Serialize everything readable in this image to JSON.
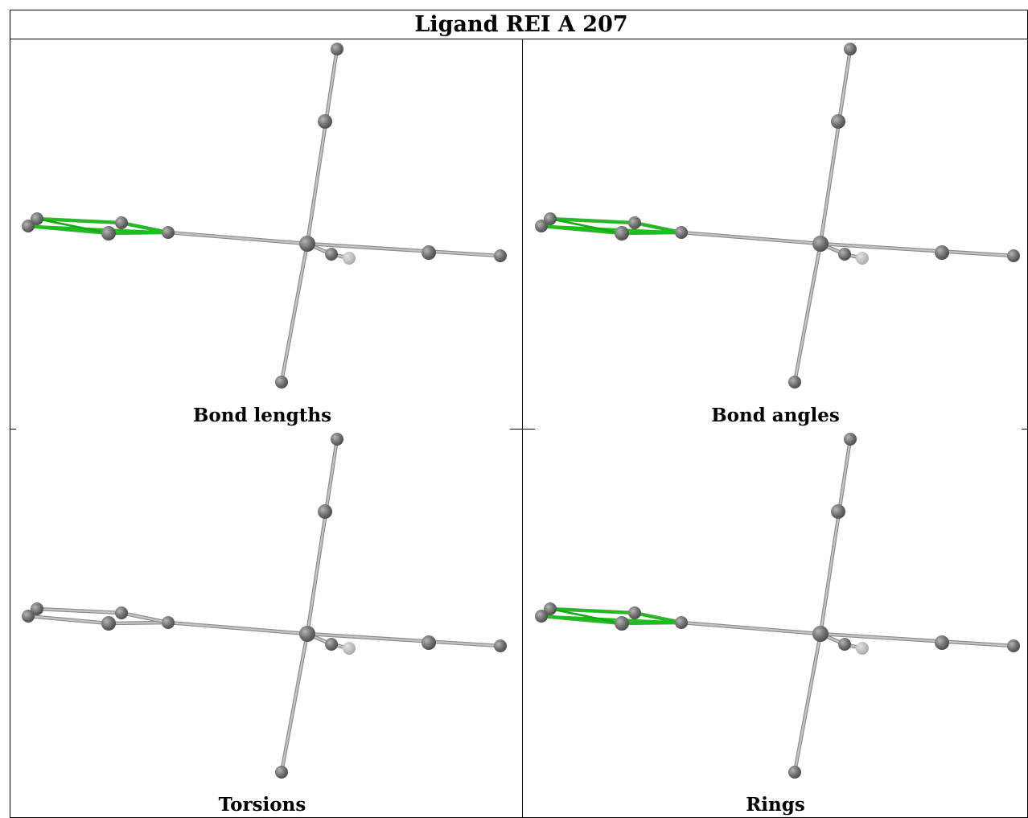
{
  "title": "Ligand REI A 207",
  "panels": [
    {
      "label": "Bond lengths",
      "highlight": "bond-lengths"
    },
    {
      "label": "Bond angles",
      "highlight": "bond-angles"
    },
    {
      "label": "Torsions",
      "highlight": "none"
    },
    {
      "label": "Rings",
      "highlight": "rings"
    }
  ],
  "colors": {
    "atom": "#6e6e6e",
    "atom_faded": "#bdbdbd",
    "bond": "#c4c4c4",
    "bond_edge": "#8a8a8a",
    "ring_highlight": "#19c019",
    "outlier": "#a020a0",
    "border": "#000000"
  }
}
